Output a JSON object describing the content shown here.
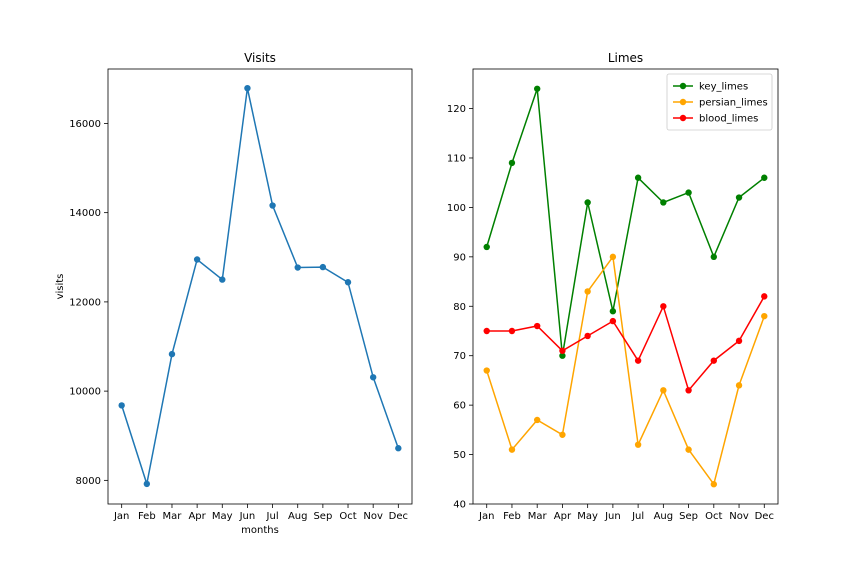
{
  "chart_data": [
    {
      "type": "line",
      "title": "Visits",
      "xlabel": "months",
      "ylabel": "visits",
      "categories": [
        "Jan",
        "Feb",
        "Mar",
        "Apr",
        "May",
        "Jun",
        "Jul",
        "Aug",
        "Sep",
        "Oct",
        "Nov",
        "Dec"
      ],
      "ylim": [
        7470,
        17220
      ],
      "yticks": [
        8000,
        10000,
        12000,
        14000,
        16000
      ],
      "grid": false,
      "series": [
        {
          "color": "#1f77b4",
          "values": [
            9680,
            7920,
            10830,
            12950,
            12500,
            16790,
            14160,
            12770,
            12780,
            12440,
            10310,
            8720
          ]
        }
      ]
    },
    {
      "type": "line",
      "title": "Limes",
      "xlabel": "",
      "ylabel": "",
      "categories": [
        "Jan",
        "Feb",
        "Mar",
        "Apr",
        "May",
        "Jun",
        "Jul",
        "Aug",
        "Sep",
        "Oct",
        "Nov",
        "Dec"
      ],
      "ylim": [
        40,
        128
      ],
      "yticks": [
        40,
        50,
        60,
        70,
        80,
        90,
        100,
        110,
        120
      ],
      "grid": false,
      "legend": "top-right",
      "series": [
        {
          "name": "key_limes",
          "color": "#008000",
          "values": [
            92,
            109,
            124,
            70,
            101,
            79,
            106,
            101,
            103,
            90,
            102,
            106
          ]
        },
        {
          "name": "persian_limes",
          "color": "#ffa500",
          "values": [
            67,
            51,
            57,
            54,
            83,
            90,
            52,
            63,
            51,
            44,
            64,
            78
          ]
        },
        {
          "name": "blood_limes",
          "color": "#ff0000",
          "values": [
            75,
            75,
            76,
            71,
            74,
            77,
            69,
            80,
            63,
            69,
            73,
            82
          ]
        }
      ]
    }
  ]
}
